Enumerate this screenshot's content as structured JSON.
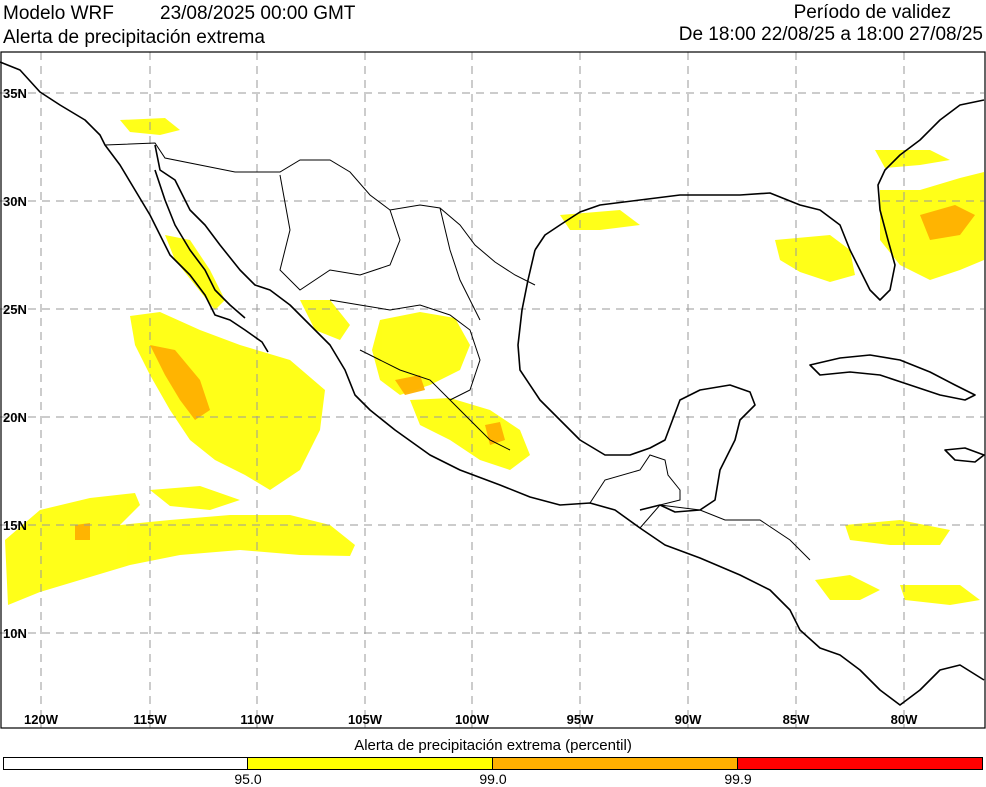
{
  "header": {
    "model": "Modelo WRF",
    "run_time": "23/08/2025 00:00 GMT",
    "product": "Alerta de precipitación extrema",
    "validity_title": "Período de validez",
    "validity_range": "De 18:00 22/08/25 a 18:00 27/08/25"
  },
  "map": {
    "lon_labels": [
      "120W",
      "115W",
      "110W",
      "105W",
      "100W",
      "95W",
      "90W",
      "85W",
      "80W"
    ],
    "lat_labels": [
      "35N",
      "30N",
      "25N",
      "20N",
      "15N",
      "10N"
    ],
    "grid_color": "#9a9a9a",
    "coast_color": "#000000"
  },
  "legend": {
    "title": "Alerta de precipitación extrema (percentil)",
    "segments": [
      {
        "color": "#ffffff",
        "from": "",
        "to": "95.0"
      },
      {
        "color": "#ffff00",
        "from": "95.0",
        "to": "99.0"
      },
      {
        "color": "#ffb000",
        "from": "99.0",
        "to": "99.9"
      },
      {
        "color": "#ff0000",
        "from": "99.9",
        "to": ""
      }
    ],
    "tick_labels": [
      "95.0",
      "99.0",
      "99.9"
    ]
  }
}
